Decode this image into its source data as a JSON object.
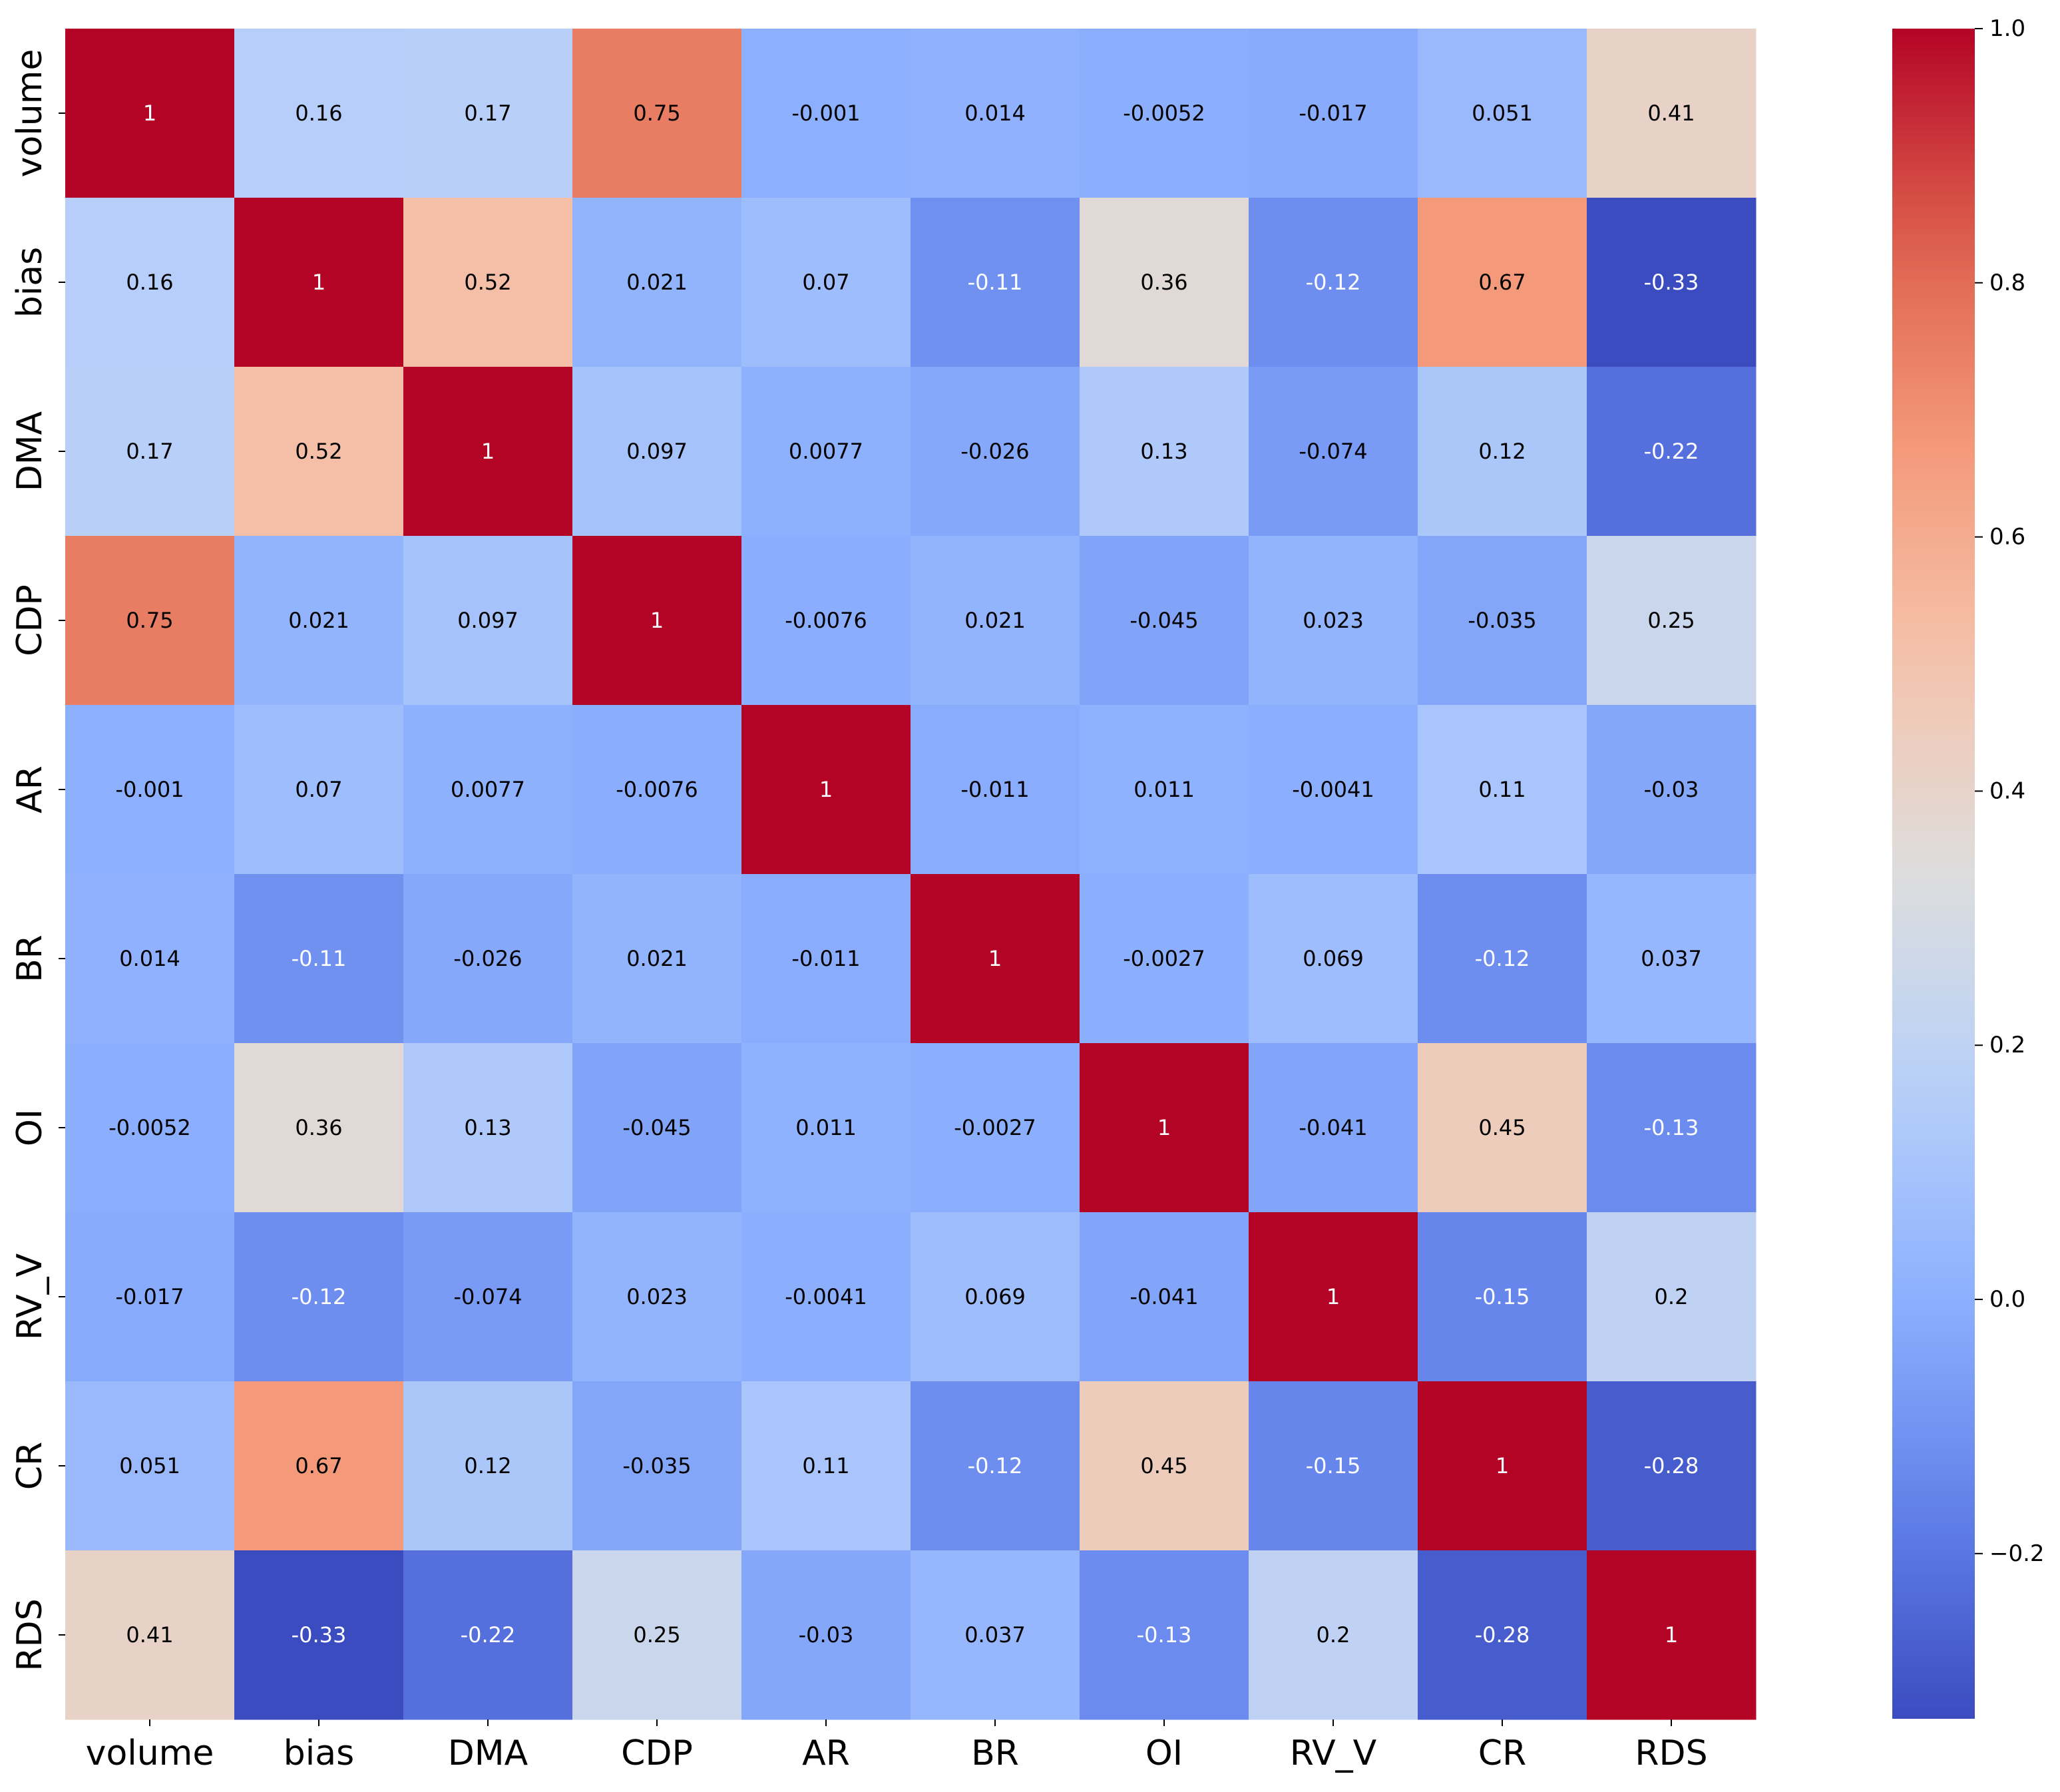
{
  "chart_data": {
    "type": "heatmap",
    "title": "",
    "xlabel": "",
    "ylabel": "",
    "colormap": "coolwarm",
    "vmin": -0.33,
    "vmax": 1.0,
    "labels": [
      "volume",
      "bias",
      "DMA",
      "CDP",
      "AR",
      "BR",
      "OI",
      "RV_V",
      "CR",
      "RDS"
    ],
    "matrix": [
      [
        1,
        0.16,
        0.17,
        0.75,
        -0.001,
        0.014,
        -0.0052,
        -0.017,
        0.051,
        0.41
      ],
      [
        0.16,
        1,
        0.52,
        0.021,
        0.07,
        -0.11,
        0.36,
        -0.12,
        0.67,
        -0.33
      ],
      [
        0.17,
        0.52,
        1,
        0.097,
        0.0077,
        -0.026,
        0.13,
        -0.074,
        0.12,
        -0.22
      ],
      [
        0.75,
        0.021,
        0.097,
        1,
        -0.0076,
        0.021,
        -0.045,
        0.023,
        -0.035,
        0.25
      ],
      [
        -0.001,
        0.07,
        0.0077,
        -0.0076,
        1,
        -0.011,
        0.011,
        -0.0041,
        0.11,
        -0.03
      ],
      [
        0.014,
        -0.11,
        -0.026,
        0.021,
        -0.011,
        1,
        -0.0027,
        0.069,
        -0.12,
        0.037
      ],
      [
        -0.0052,
        0.36,
        0.13,
        -0.045,
        0.011,
        -0.0027,
        1,
        -0.041,
        0.45,
        -0.13
      ],
      [
        -0.017,
        -0.12,
        -0.074,
        0.023,
        -0.0041,
        0.069,
        -0.041,
        1,
        -0.15,
        0.2
      ],
      [
        0.051,
        0.67,
        0.12,
        -0.035,
        0.11,
        -0.12,
        0.45,
        -0.15,
        1,
        -0.28
      ],
      [
        0.41,
        -0.33,
        -0.22,
        0.25,
        -0.03,
        0.037,
        -0.13,
        0.2,
        -0.28,
        1
      ]
    ],
    "colorbar": {
      "ticks": [
        1.0,
        0.8,
        0.6,
        0.4,
        0.2,
        0.0,
        -0.2
      ],
      "tick_labels": [
        "1.0",
        "0.8",
        "0.6",
        "0.4",
        "0.2",
        "0.0",
        "−0.2"
      ]
    }
  }
}
